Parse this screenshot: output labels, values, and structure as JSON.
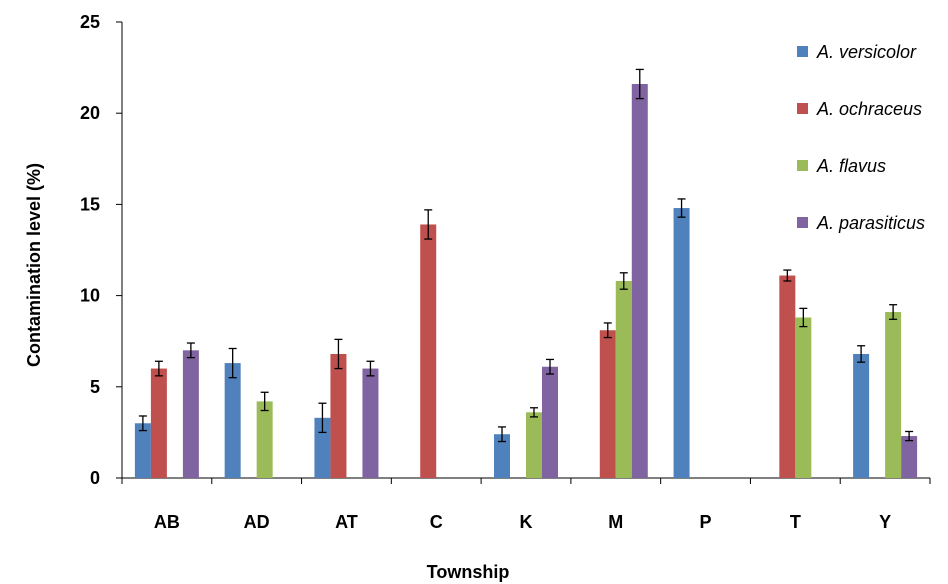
{
  "chart_data": {
    "type": "bar",
    "xlabel": "Township",
    "ylabel": "Contamination level (%)",
    "ylim": [
      0,
      25
    ],
    "yticks": [
      0,
      5,
      10,
      15,
      20,
      25
    ],
    "grid": false,
    "legend_position": "top-right",
    "categories": [
      "AB",
      "AD",
      "AT",
      "C",
      "K",
      "M",
      "P",
      "T",
      "Y"
    ],
    "series": [
      {
        "name": "A. versicolor",
        "color": "#4F81BD",
        "values": [
          3.0,
          6.3,
          3.3,
          0,
          2.4,
          0,
          14.8,
          0,
          6.8
        ],
        "errors": [
          0.4,
          0.8,
          0.8,
          0,
          0.4,
          0,
          0.5,
          0,
          0.45
        ]
      },
      {
        "name": "A. ochraceus",
        "color": "#C0504D",
        "values": [
          6.0,
          0,
          6.8,
          13.9,
          0,
          8.1,
          0,
          11.1,
          0
        ],
        "errors": [
          0.4,
          0,
          0.8,
          0.8,
          0,
          0.4,
          0,
          0.3,
          0
        ]
      },
      {
        "name": "A. flavus",
        "color": "#9BBB59",
        "values": [
          0,
          4.2,
          0,
          0,
          3.6,
          10.8,
          0,
          8.8,
          9.1
        ],
        "errors": [
          0,
          0.5,
          0,
          0,
          0.25,
          0.45,
          0,
          0.5,
          0.4
        ]
      },
      {
        "name": "A. parasiticus",
        "color": "#8064A2",
        "values": [
          7.0,
          0,
          6.0,
          0,
          6.1,
          21.6,
          0,
          0,
          2.3
        ],
        "errors": [
          0.4,
          0,
          0.4,
          0,
          0.4,
          0.8,
          0,
          0,
          0.25
        ]
      }
    ]
  }
}
